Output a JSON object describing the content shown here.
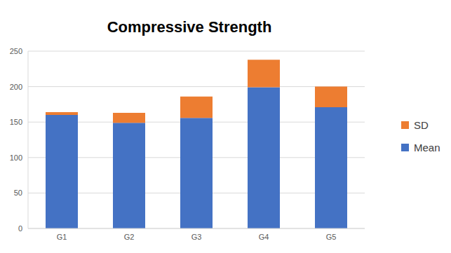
{
  "chart_data": {
    "type": "bar",
    "title": "Compressive Strength",
    "categories": [
      "G1",
      "G2",
      "G3",
      "G4",
      "G5"
    ],
    "series": [
      {
        "name": "Mean",
        "color": "#4472c4",
        "values": [
          160,
          149,
          156,
          199,
          171
        ]
      },
      {
        "name": "SD",
        "color": "#ed7d31",
        "values": [
          4,
          14,
          30,
          39,
          29
        ]
      }
    ],
    "stacked": true,
    "ylim": [
      0,
      250
    ],
    "yticks": [
      0,
      50,
      100,
      150,
      200,
      250
    ],
    "grid": true,
    "legend": "right"
  }
}
